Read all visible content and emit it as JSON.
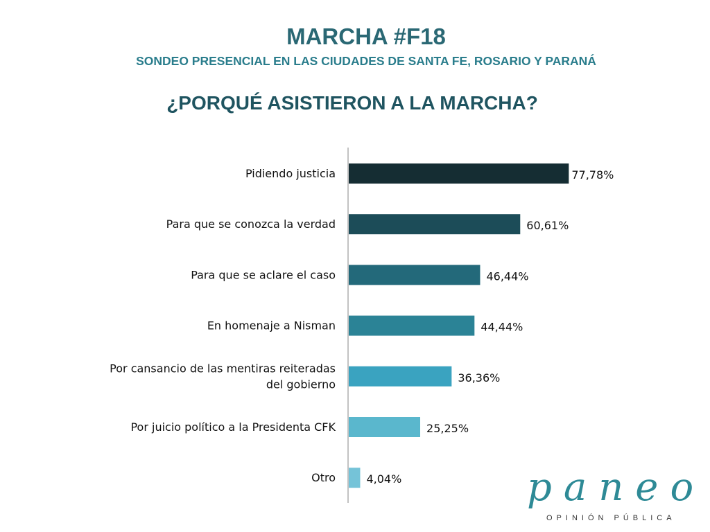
{
  "header": {
    "title": "MARCHA #F18",
    "subtitle": "SONDEO PRESENCIAL EN LAS CIUDADES DE SANTA FE, ROSARIO Y PARANÁ",
    "question": "¿PORQUÉ ASISTIERON A LA MARCHA?"
  },
  "chart_data": {
    "type": "bar",
    "orientation": "horizontal",
    "categories": [
      [
        "Pidiendo justicia"
      ],
      [
        "Para que se conozca la verdad"
      ],
      [
        "Para que se aclare el caso"
      ],
      [
        "En homenaje a Nisman"
      ],
      [
        "Por cansancio de las mentiras reiteradas",
        "del gobierno"
      ],
      [
        "Por juicio político a la Presidenta CFK"
      ],
      [
        "Otro"
      ]
    ],
    "values": [
      77.78,
      60.61,
      46.44,
      44.44,
      36.36,
      25.25,
      4.04
    ],
    "value_labels": [
      "77,78%",
      "60,61%",
      "46,44%",
      "44,44%",
      "36,36%",
      "25,25%",
      "4,04%"
    ],
    "colors": [
      "#152d33",
      "#1c4c58",
      "#23697a",
      "#2b8396",
      "#3aa3c0",
      "#5ab7cd",
      "#75c3d8"
    ],
    "xlim": [
      0,
      100
    ],
    "grid": false,
    "legend": "none"
  },
  "logo": {
    "word": "paneo",
    "tagline": "OPINIÓN PÚBLICA"
  }
}
